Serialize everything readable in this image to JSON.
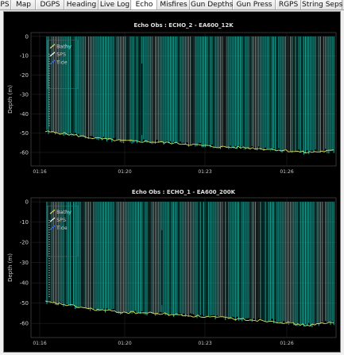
{
  "tabs": [
    {
      "label": "PS"
    },
    {
      "label": "Map"
    },
    {
      "label": "DGPS"
    },
    {
      "label": "Heading"
    },
    {
      "label": "Live Log"
    },
    {
      "label": "Echo",
      "active": true
    },
    {
      "label": "Misfires"
    },
    {
      "label": "Gun Depths"
    },
    {
      "label": "Gun Press"
    },
    {
      "label": "RGPS"
    },
    {
      "label": "String Seps"
    }
  ],
  "colors": {
    "background": "#000000",
    "bars": "#1fb5a8",
    "bathy": "#d8e060",
    "sps": "#ffffff",
    "tide": "#2a6cff",
    "axis_text": "#cfcfcf"
  },
  "chart_data": [
    {
      "type": "bar",
      "title": "Echo Obs : ECHO_2 - EA600_12K",
      "ylabel": "Depth (m)",
      "ylim": [
        -67,
        2
      ],
      "yticks": [
        0,
        -10,
        -20,
        -30,
        -40,
        -50,
        -60
      ],
      "xticks": [
        "01:16",
        "01:20",
        "01:23",
        "01:26"
      ],
      "legend": [
        "Bathy",
        "SPS",
        "Tide"
      ],
      "legend_position": "top-left",
      "grid": true,
      "seabed_x": [
        0,
        0.1,
        0.2,
        0.3,
        0.4,
        0.5,
        0.6,
        0.7,
        0.8,
        0.9,
        1.0
      ],
      "seabed_depth": [
        -48.5,
        -50,
        -52.5,
        -54,
        -54.5,
        -55.5,
        -57,
        -57.5,
        -58.5,
        -60,
        -59
      ]
    },
    {
      "type": "bar",
      "title": "Echo Obs : ECHO_1 - EA600_200K",
      "ylabel": "Depth (m)",
      "ylim": [
        -67,
        2
      ],
      "yticks": [
        0,
        -10,
        -20,
        -30,
        -40,
        -50,
        -60
      ],
      "xticks": [
        "01:16",
        "01:20",
        "01:23",
        "01:26"
      ],
      "legend": [
        "Bathy",
        "SPS",
        "Tide"
      ],
      "legend_position": "top-left",
      "grid": true,
      "seabed_x": [
        0,
        0.1,
        0.2,
        0.3,
        0.4,
        0.5,
        0.6,
        0.7,
        0.8,
        0.9,
        1.0
      ],
      "seabed_depth": [
        -48.5,
        -50.5,
        -53,
        -54.5,
        -55,
        -56,
        -57,
        -58,
        -59,
        -61,
        -59.5
      ]
    }
  ]
}
